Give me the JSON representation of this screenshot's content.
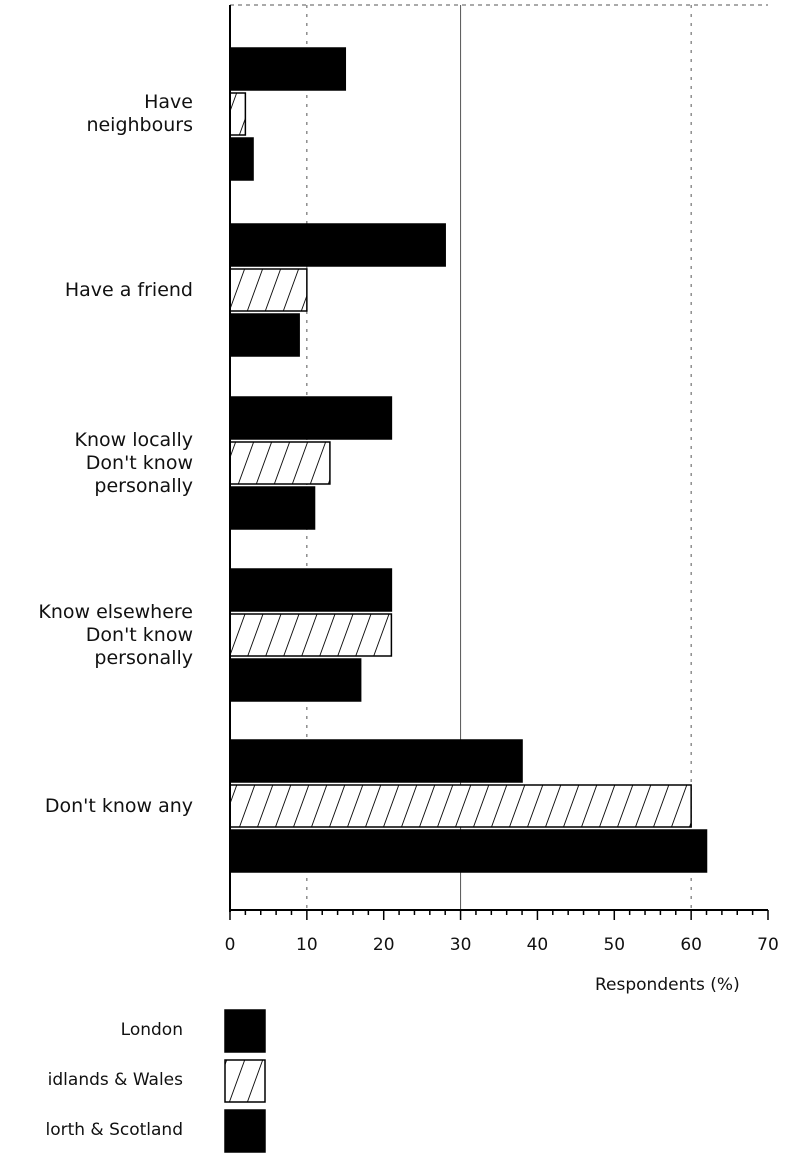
{
  "chart_data": {
    "type": "bar",
    "orientation": "horizontal",
    "categories": [
      "Have\nneighbours",
      "Have a friend",
      "Know locally\nDon't know\npersonally",
      "Know elsewhere\nDon't know\npersonally",
      "Don't know any"
    ],
    "series": [
      {
        "name": "London",
        "values": [
          15,
          28,
          21,
          21,
          38
        ],
        "fill": "solid"
      },
      {
        "name": "Midlands & Wales",
        "values": [
          2,
          10,
          13,
          21,
          60
        ],
        "fill": "hatched"
      },
      {
        "name": "North & Scotland",
        "values": [
          3,
          9,
          11,
          17,
          62
        ],
        "fill": "solid"
      }
    ],
    "xlabel": "Respondents (%)",
    "xlim": [
      0,
      70
    ],
    "xticks": [
      0,
      10,
      20,
      30,
      40,
      50,
      60,
      70
    ],
    "colors": {
      "solid": "#000000",
      "hatch": "#111111",
      "background": "#ffffff"
    }
  },
  "legend": [
    {
      "label": "London",
      "fill": "solid"
    },
    {
      "label": "idlands & Wales",
      "fill": "hatched"
    },
    {
      "label": "lorth & Scotland",
      "fill": "solid"
    }
  ]
}
